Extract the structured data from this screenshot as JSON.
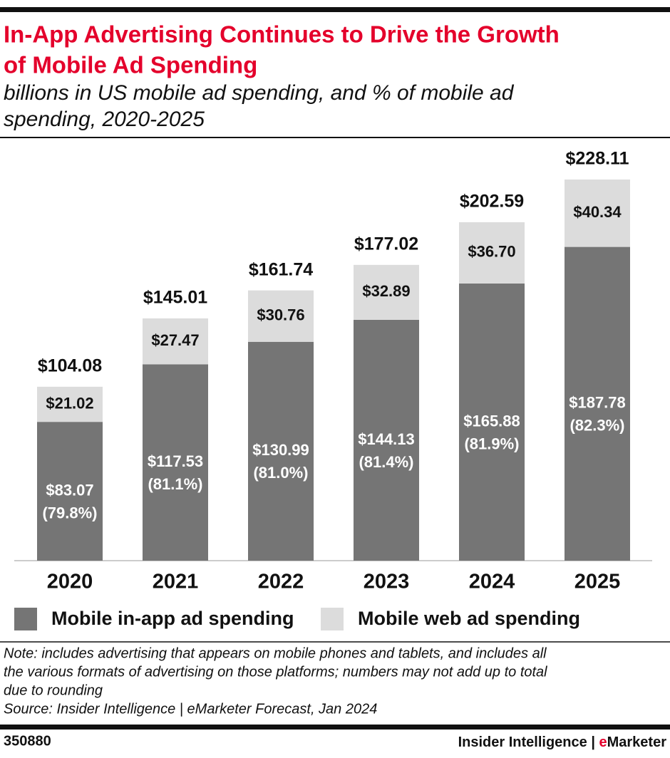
{
  "chart_data": {
    "type": "stacked_bar",
    "title": [
      "In-App Advertising Continues to Drive the Growth",
      "of Mobile Ad Spending"
    ],
    "subtitle": [
      "billions in US mobile ad spending, and % of mobile ad",
      "spending, 2020-2025"
    ],
    "categories": [
      "2020",
      "2021",
      "2022",
      "2023",
      "2024",
      "2025"
    ],
    "series": [
      {
        "name": "Mobile in-app ad spending",
        "color": "#757575",
        "label_color": "#ffffff",
        "values": [
          83.07,
          117.53,
          130.99,
          144.13,
          165.88,
          187.78
        ],
        "value_labels": [
          "$83.07",
          "$117.53",
          "$130.99",
          "$144.13",
          "$165.88",
          "$187.78"
        ],
        "shares": [
          79.8,
          81.1,
          81.0,
          81.4,
          81.9,
          82.3
        ],
        "share_labels": [
          "(79.8%)",
          "(81.1%)",
          "(81.0%)",
          "(81.4%)",
          "(81.9%)",
          "(82.3%)"
        ]
      },
      {
        "name": "Mobile web ad spending",
        "color": "#dcdcdc",
        "label_color": "#111111",
        "values": [
          21.02,
          27.47,
          30.76,
          32.89,
          36.7,
          40.34
        ],
        "value_labels": [
          "$21.02",
          "$27.47",
          "$30.76",
          "$32.89",
          "$36.70",
          "$40.34"
        ]
      }
    ],
    "totals": [
      104.08,
      145.01,
      161.74,
      177.02,
      202.59,
      228.11
    ],
    "total_labels": [
      "$104.08",
      "$145.01",
      "$161.74",
      "$177.02",
      "$202.59",
      "$228.11"
    ],
    "note": [
      "Note: includes advertising that appears on mobile phones and tablets, and includes all",
      "the various formats of advertising on those platforms; numbers may not add up to total",
      "due to rounding",
      "Source: Insider Intelligence | eMarketer Forecast, Jan 2024"
    ],
    "footer": {
      "id": "350880",
      "brand": "Insider Intelligence",
      "separator": "|",
      "brand_e": "e",
      "brand_rest": "Marketer"
    }
  }
}
